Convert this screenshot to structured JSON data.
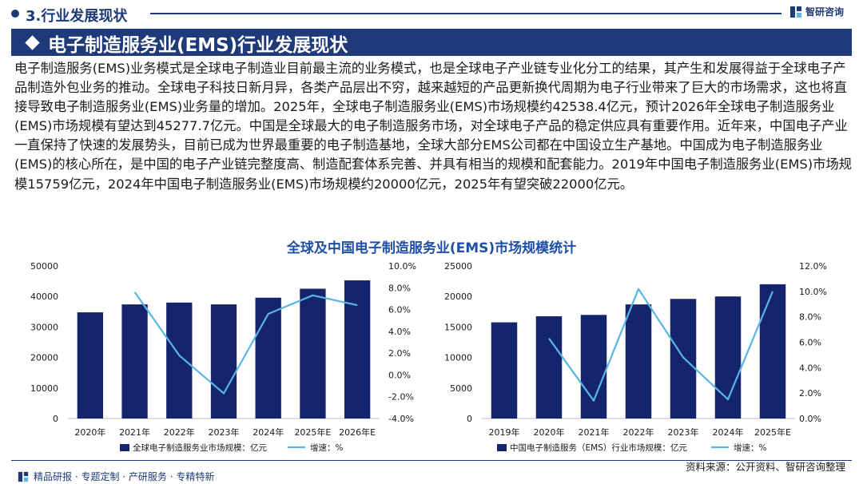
{
  "header": {
    "section_title": "3.行业发展现状",
    "logo_text": "智研咨询",
    "banner_title": "电子制造服务业(EMS)行业发展现状"
  },
  "body_text": "电子制造服务(EMS)业务模式是全球电子制造业目前最主流的业务模式，也是全球电子产业链专业化分工的结果，其产生和发展得益于全球电子产品制造外包业务的推动。全球电子科技日新月异，各类产品层出不穷，越来越短的产品更新换代周期为电子行业带来了巨大的市场需求，这也将直接导致电子制造服务业(EMS)业务量的增加。2025年，全球电子制造服务业(EMS)市场规模约42538.4亿元，预计2026年全球电子制造服务业(EMS)市场规模有望达到45277.7亿元。中国是全球最大的电子制造服务市场，对全球电子产品的稳定供应具有重要作用。近年来，中国电子产业一直保持了快速的发展势头，目前已成为世界最重要的电子制造基地，全球大部分EMS公司都在中国设立生产基地。中国成为电子制造服务业(EMS)的核心所在，是中国的电子产业链完整度高、制造配套体系完善、并具有相当的规模和配套能力。2019年中国电子制造服务业(EMS)市场规模15759亿元，2024年中国电子制造服务业(EMS)市场规模约20000亿元，2025年有望突破22000亿元。",
  "chart_title": "全球及中国电子制造服务业(EMS)市场规模统计",
  "colors": {
    "bar": "#14256e",
    "line": "#5ab4e5",
    "brand": "#1f3a78"
  },
  "chart_data": [
    {
      "type": "bar",
      "categories": [
        "2020年",
        "2021年",
        "2022年",
        "2023年",
        "2024年",
        "2025年E",
        "2026年E"
      ],
      "series": [
        {
          "name": "全球电子制造服务业市场规模：亿元",
          "type": "bar",
          "axis": "left",
          "values": [
            34800,
            37400,
            38000,
            37400,
            39600,
            42538.4,
            45277.7
          ]
        },
        {
          "name": "增速：%",
          "type": "line",
          "axis": "right",
          "values": [
            null,
            7.6,
            1.8,
            -1.7,
            5.6,
            7.3,
            6.4
          ]
        }
      ],
      "left_axis": {
        "min": 0,
        "max": 50000,
        "ticks": [
          "0",
          "10000",
          "20000",
          "30000",
          "40000",
          "50000"
        ]
      },
      "right_axis": {
        "min": -4,
        "max": 10,
        "ticks": [
          "-4.0%",
          "-2.0%",
          "0.0%",
          "2.0%",
          "4.0%",
          "6.0%",
          "8.0%",
          "10.0%"
        ]
      },
      "grid": false,
      "legend_position": "bottom"
    },
    {
      "type": "bar",
      "categories": [
        "2019年",
        "2020年",
        "2021年",
        "2022年",
        "2023年",
        "2024年",
        "2025年E"
      ],
      "series": [
        {
          "name": "中国电子制造服务（EMS）行业市场规模：亿元",
          "type": "bar",
          "axis": "left",
          "values": [
            15759,
            16750,
            16980,
            18700,
            19600,
            20000,
            22000
          ]
        },
        {
          "name": "增速：%",
          "type": "line",
          "axis": "right",
          "values": [
            null,
            6.3,
            1.4,
            10.2,
            4.8,
            1.5,
            10.0
          ]
        }
      ],
      "left_axis": {
        "min": 0,
        "max": 25000,
        "ticks": [
          "0",
          "5000",
          "10000",
          "15000",
          "20000",
          "25000"
        ]
      },
      "right_axis": {
        "min": 0,
        "max": 12,
        "ticks": [
          "0.0%",
          "2.0%",
          "4.0%",
          "6.0%",
          "8.0%",
          "10.0%",
          "12.0%"
        ]
      },
      "grid": false,
      "legend_position": "bottom"
    }
  ],
  "footer": {
    "left_text": "精品研报 · 专题定制 · 产研服务 · 专精特新",
    "source": "资料来源：公开资料、智研咨询整理"
  }
}
